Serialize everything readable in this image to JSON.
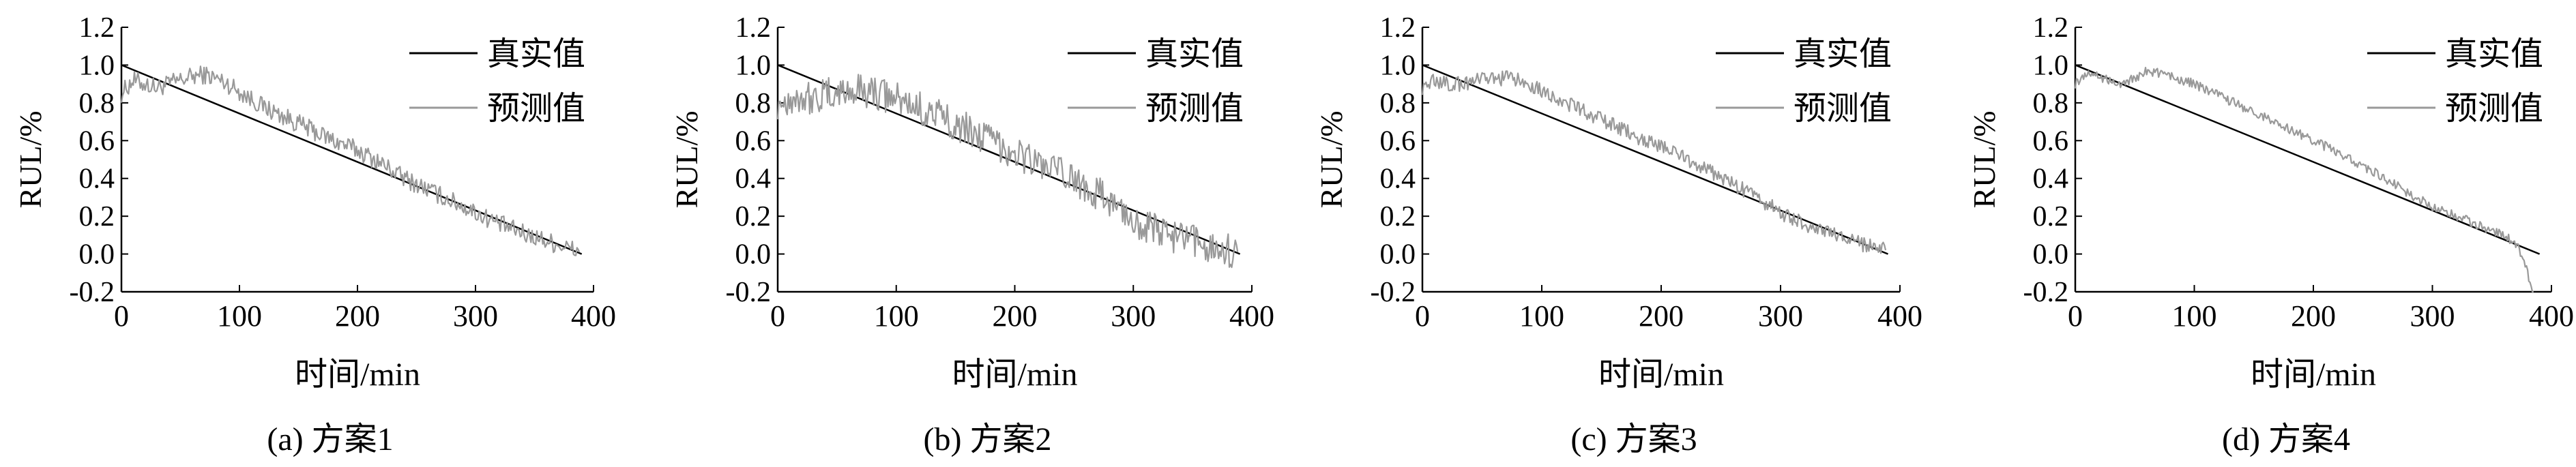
{
  "chart_data": [
    {
      "type": "line",
      "caption": "(a) 方案1",
      "xlabel": "时间/min",
      "ylabel": "RUL/%",
      "xlim": [
        0,
        400
      ],
      "ylim": [
        -0.2,
        1.2
      ],
      "xticks": [
        "0",
        "100",
        "200",
        "300",
        "400"
      ],
      "yticks": [
        "-0.2",
        "0.0",
        "0.2",
        "0.4",
        "0.6",
        "0.8",
        "1.0",
        "1.2"
      ],
      "legend_position": "top-right",
      "grid": false,
      "series": [
        {
          "name": "真实值",
          "color": "#000000",
          "x": [
            0,
            390
          ],
          "y": [
            1.0,
            0.0
          ]
        },
        {
          "name": "预测值",
          "color": "#999999",
          "x": [
            0,
            10,
            20,
            30,
            40,
            50,
            60,
            70,
            80,
            90,
            100,
            120,
            140,
            160,
            180,
            200,
            220,
            240,
            260,
            280,
            300,
            320,
            340,
            360,
            380,
            388
          ],
          "y": [
            0.85,
            0.92,
            0.9,
            0.88,
            0.9,
            0.92,
            0.94,
            0.95,
            0.93,
            0.9,
            0.86,
            0.78,
            0.72,
            0.66,
            0.6,
            0.55,
            0.48,
            0.4,
            0.34,
            0.28,
            0.22,
            0.16,
            0.11,
            0.07,
            0.03,
            0.01
          ],
          "noise": 0.05
        }
      ]
    },
    {
      "type": "line",
      "caption": "(b) 方案2",
      "xlabel": "时间/min",
      "ylabel": "RUL/%",
      "xlim": [
        0,
        400
      ],
      "ylim": [
        -0.2,
        1.2
      ],
      "xticks": [
        "0",
        "100",
        "200",
        "300",
        "400"
      ],
      "yticks": [
        "-0.2",
        "0.0",
        "0.2",
        "0.4",
        "0.6",
        "0.8",
        "1.0",
        "1.2"
      ],
      "legend_position": "top-right",
      "grid": false,
      "series": [
        {
          "name": "真实值",
          "color": "#000000",
          "x": [
            0,
            390
          ],
          "y": [
            1.0,
            0.0
          ]
        },
        {
          "name": "预测值",
          "color": "#999999",
          "x": [
            0,
            10,
            20,
            30,
            40,
            50,
            60,
            70,
            80,
            90,
            100,
            120,
            140,
            160,
            180,
            200,
            220,
            240,
            260,
            280,
            300,
            320,
            340,
            360,
            380,
            388
          ],
          "y": [
            0.8,
            0.82,
            0.84,
            0.82,
            0.84,
            0.85,
            0.86,
            0.87,
            0.86,
            0.84,
            0.82,
            0.77,
            0.72,
            0.66,
            0.6,
            0.54,
            0.48,
            0.42,
            0.36,
            0.28,
            0.18,
            0.12,
            0.08,
            0.05,
            0.02,
            0.01
          ],
          "noise": 0.09
        }
      ]
    },
    {
      "type": "line",
      "caption": "(c) 方案3",
      "xlabel": "时间/min",
      "ylabel": "RUL/%",
      "xlim": [
        0,
        400
      ],
      "ylim": [
        -0.2,
        1.2
      ],
      "xticks": [
        "0",
        "100",
        "200",
        "300",
        "400"
      ],
      "yticks": [
        "-0.2",
        "0.0",
        "0.2",
        "0.4",
        "0.6",
        "0.8",
        "1.0",
        "1.2"
      ],
      "legend_position": "top-right",
      "grid": false,
      "series": [
        {
          "name": "真实值",
          "color": "#000000",
          "x": [
            0,
            390
          ],
          "y": [
            1.0,
            0.0
          ]
        },
        {
          "name": "预测值",
          "color": "#999999",
          "x": [
            0,
            10,
            20,
            30,
            40,
            50,
            60,
            70,
            80,
            90,
            100,
            120,
            140,
            160,
            180,
            200,
            220,
            240,
            260,
            280,
            300,
            320,
            340,
            360,
            380,
            388
          ],
          "y": [
            0.88,
            0.92,
            0.9,
            0.9,
            0.91,
            0.92,
            0.93,
            0.93,
            0.92,
            0.9,
            0.87,
            0.8,
            0.74,
            0.68,
            0.62,
            0.57,
            0.51,
            0.44,
            0.37,
            0.3,
            0.22,
            0.16,
            0.11,
            0.07,
            0.03,
            0.02
          ],
          "noise": 0.04
        }
      ]
    },
    {
      "type": "line",
      "caption": "(d) 方案4",
      "xlabel": "时间/min",
      "ylabel": "RUL/%",
      "xlim": [
        0,
        400
      ],
      "ylim": [
        -0.2,
        1.2
      ],
      "xticks": [
        "0",
        "100",
        "200",
        "300",
        "400"
      ],
      "yticks": [
        "-0.2",
        "0.0",
        "0.2",
        "0.4",
        "0.6",
        "0.8",
        "1.0",
        "1.2"
      ],
      "legend_position": "top-right",
      "grid": false,
      "series": [
        {
          "name": "真实值",
          "color": "#000000",
          "x": [
            0,
            390
          ],
          "y": [
            1.0,
            0.0
          ]
        },
        {
          "name": "预测值",
          "color": "#999999",
          "x": [
            0,
            10,
            20,
            30,
            40,
            50,
            60,
            70,
            80,
            90,
            100,
            120,
            140,
            160,
            180,
            200,
            220,
            240,
            260,
            280,
            300,
            320,
            340,
            360,
            370,
            375,
            380,
            385
          ],
          "y": [
            0.9,
            0.96,
            0.94,
            0.92,
            0.9,
            0.93,
            0.97,
            0.96,
            0.94,
            0.92,
            0.9,
            0.84,
            0.78,
            0.72,
            0.66,
            0.6,
            0.54,
            0.47,
            0.4,
            0.32,
            0.25,
            0.2,
            0.15,
            0.1,
            0.05,
            0.0,
            -0.1,
            -0.22
          ],
          "noise": 0.025
        }
      ]
    }
  ]
}
